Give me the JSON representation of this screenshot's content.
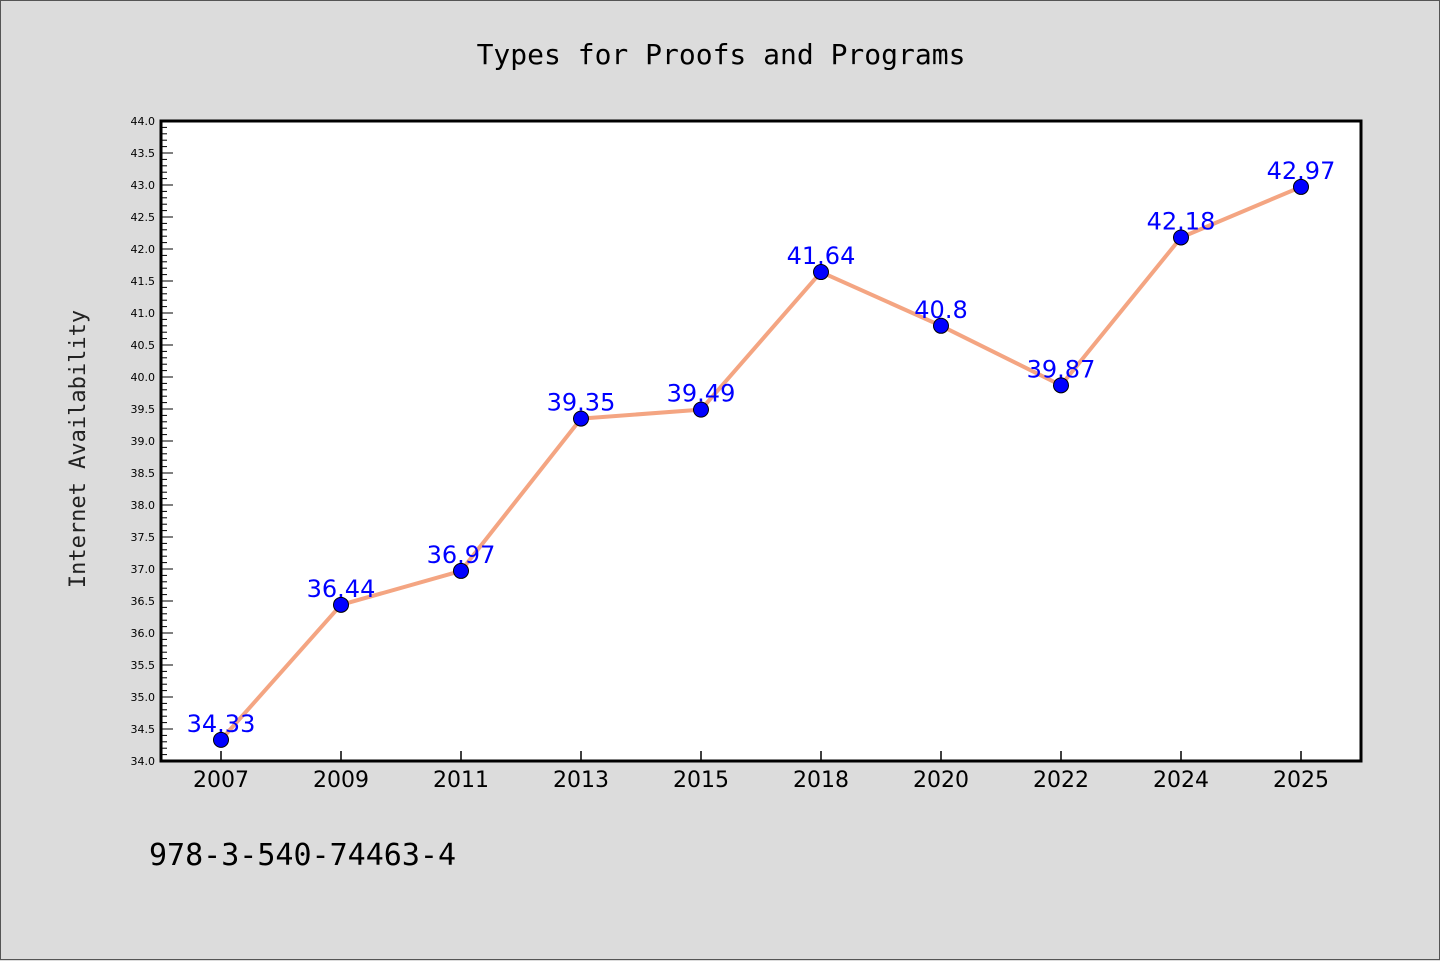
{
  "chart_data": {
    "type": "line",
    "title": "Types for Proofs and Programs",
    "xlabel": "",
    "ylabel": "Internet Availability",
    "categories": [
      "2007",
      "2009",
      "2011",
      "2013",
      "2015",
      "2018",
      "2020",
      "2022",
      "2024",
      "2025"
    ],
    "series": [
      {
        "values": [
          34.33,
          36.44,
          36.97,
          39.35,
          39.49,
          41.64,
          40.8,
          39.87,
          42.18,
          42.97
        ],
        "labels": [
          "34.33",
          "36.44",
          "36.97",
          "39.35",
          "39.49",
          "41.64",
          "40.8",
          "39.87",
          "42.18",
          "42.97"
        ],
        "line_color": "#f4a582",
        "marker_color": "#0000ff"
      }
    ],
    "ylim": [
      34.0,
      44.0
    ],
    "yticks": [
      "34.0",
      "34.5",
      "35.0",
      "35.5",
      "36.0",
      "36.5",
      "37.0",
      "37.5",
      "38.0",
      "38.5",
      "39.0",
      "39.5",
      "40.0",
      "40.5",
      "41.0",
      "41.5",
      "42.0",
      "42.5",
      "43.0",
      "43.5",
      "44.0"
    ],
    "grid": false,
    "legend": "none"
  },
  "footnote": "978-3-540-74463-4",
  "colors": {
    "background": "#dcdcdc",
    "plot_background": "#ffffff",
    "label_color": "#0000ff"
  }
}
